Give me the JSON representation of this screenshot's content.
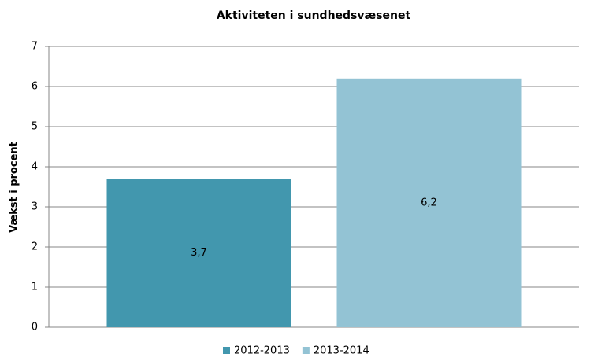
{
  "chart_data": {
    "type": "bar",
    "title": "Aktiviteten i sundhedsvæsenet",
    "y_label": "Vækst i procent",
    "categories": [
      null
    ],
    "series": [
      {
        "name": "2012-2013",
        "color": "#4297ae",
        "values": [
          3.7
        ],
        "value_labels": [
          "3,7"
        ]
      },
      {
        "name": "2013-2014",
        "color": "#93c3d4",
        "values": [
          6.2
        ],
        "value_labels": [
          "6,2"
        ]
      }
    ],
    "ylim": [
      0,
      7
    ],
    "yticks": [
      0,
      1,
      2,
      3,
      4,
      5,
      6,
      7
    ],
    "grid": true,
    "legend": "bottom"
  }
}
